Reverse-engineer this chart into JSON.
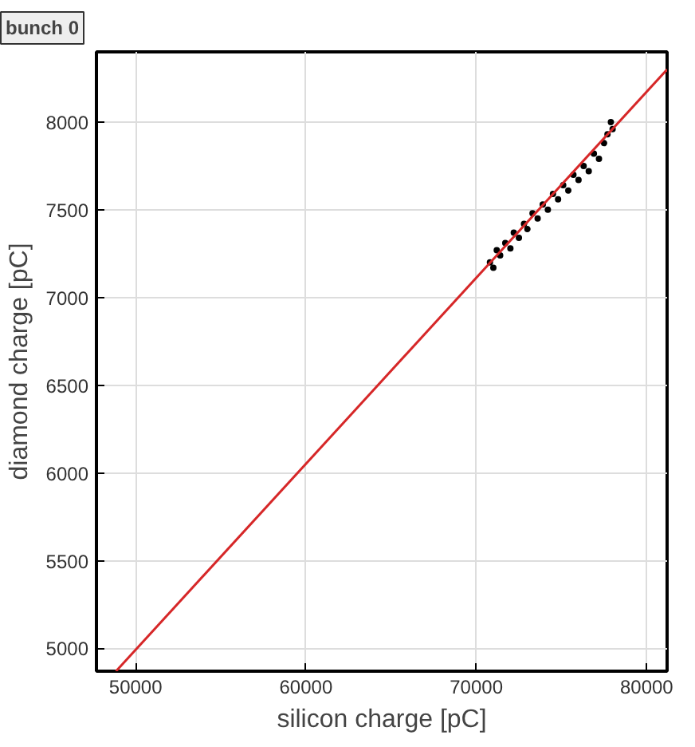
{
  "chart_data": {
    "type": "scatter",
    "title": "bunch 0",
    "xlabel": "silicon charge [pC]",
    "ylabel": "diamond charge [pC]",
    "xlim": [
      47700,
      81200
    ],
    "ylim": [
      4870,
      8400
    ],
    "xticks": [
      50000,
      60000,
      70000,
      80000
    ],
    "yticks": [
      5000,
      5500,
      6000,
      6500,
      7000,
      7500,
      8000
    ],
    "grid": true,
    "marker": "circle",
    "series": [
      {
        "color": "#000000",
        "x": [
          70800,
          71000,
          71200,
          71400,
          71700,
          72000,
          72200,
          72500,
          72800,
          73000,
          73300,
          73600,
          73900,
          74200,
          74500,
          74800,
          75100,
          75400,
          75700,
          76000,
          76300,
          76600,
          76900,
          77200,
          77500,
          77700,
          77900,
          78000
        ],
        "values": [
          7200,
          7170,
          7270,
          7240,
          7310,
          7280,
          7370,
          7340,
          7420,
          7390,
          7480,
          7450,
          7530,
          7500,
          7590,
          7560,
          7640,
          7610,
          7700,
          7670,
          7750,
          7720,
          7820,
          7790,
          7880,
          7930,
          8000,
          7960
        ]
      },
      {
        "type": "line",
        "color": "#d62728",
        "x": [
          48850,
          81200
        ],
        "values": [
          4870,
          8300
        ],
        "marker": "none"
      }
    ]
  }
}
